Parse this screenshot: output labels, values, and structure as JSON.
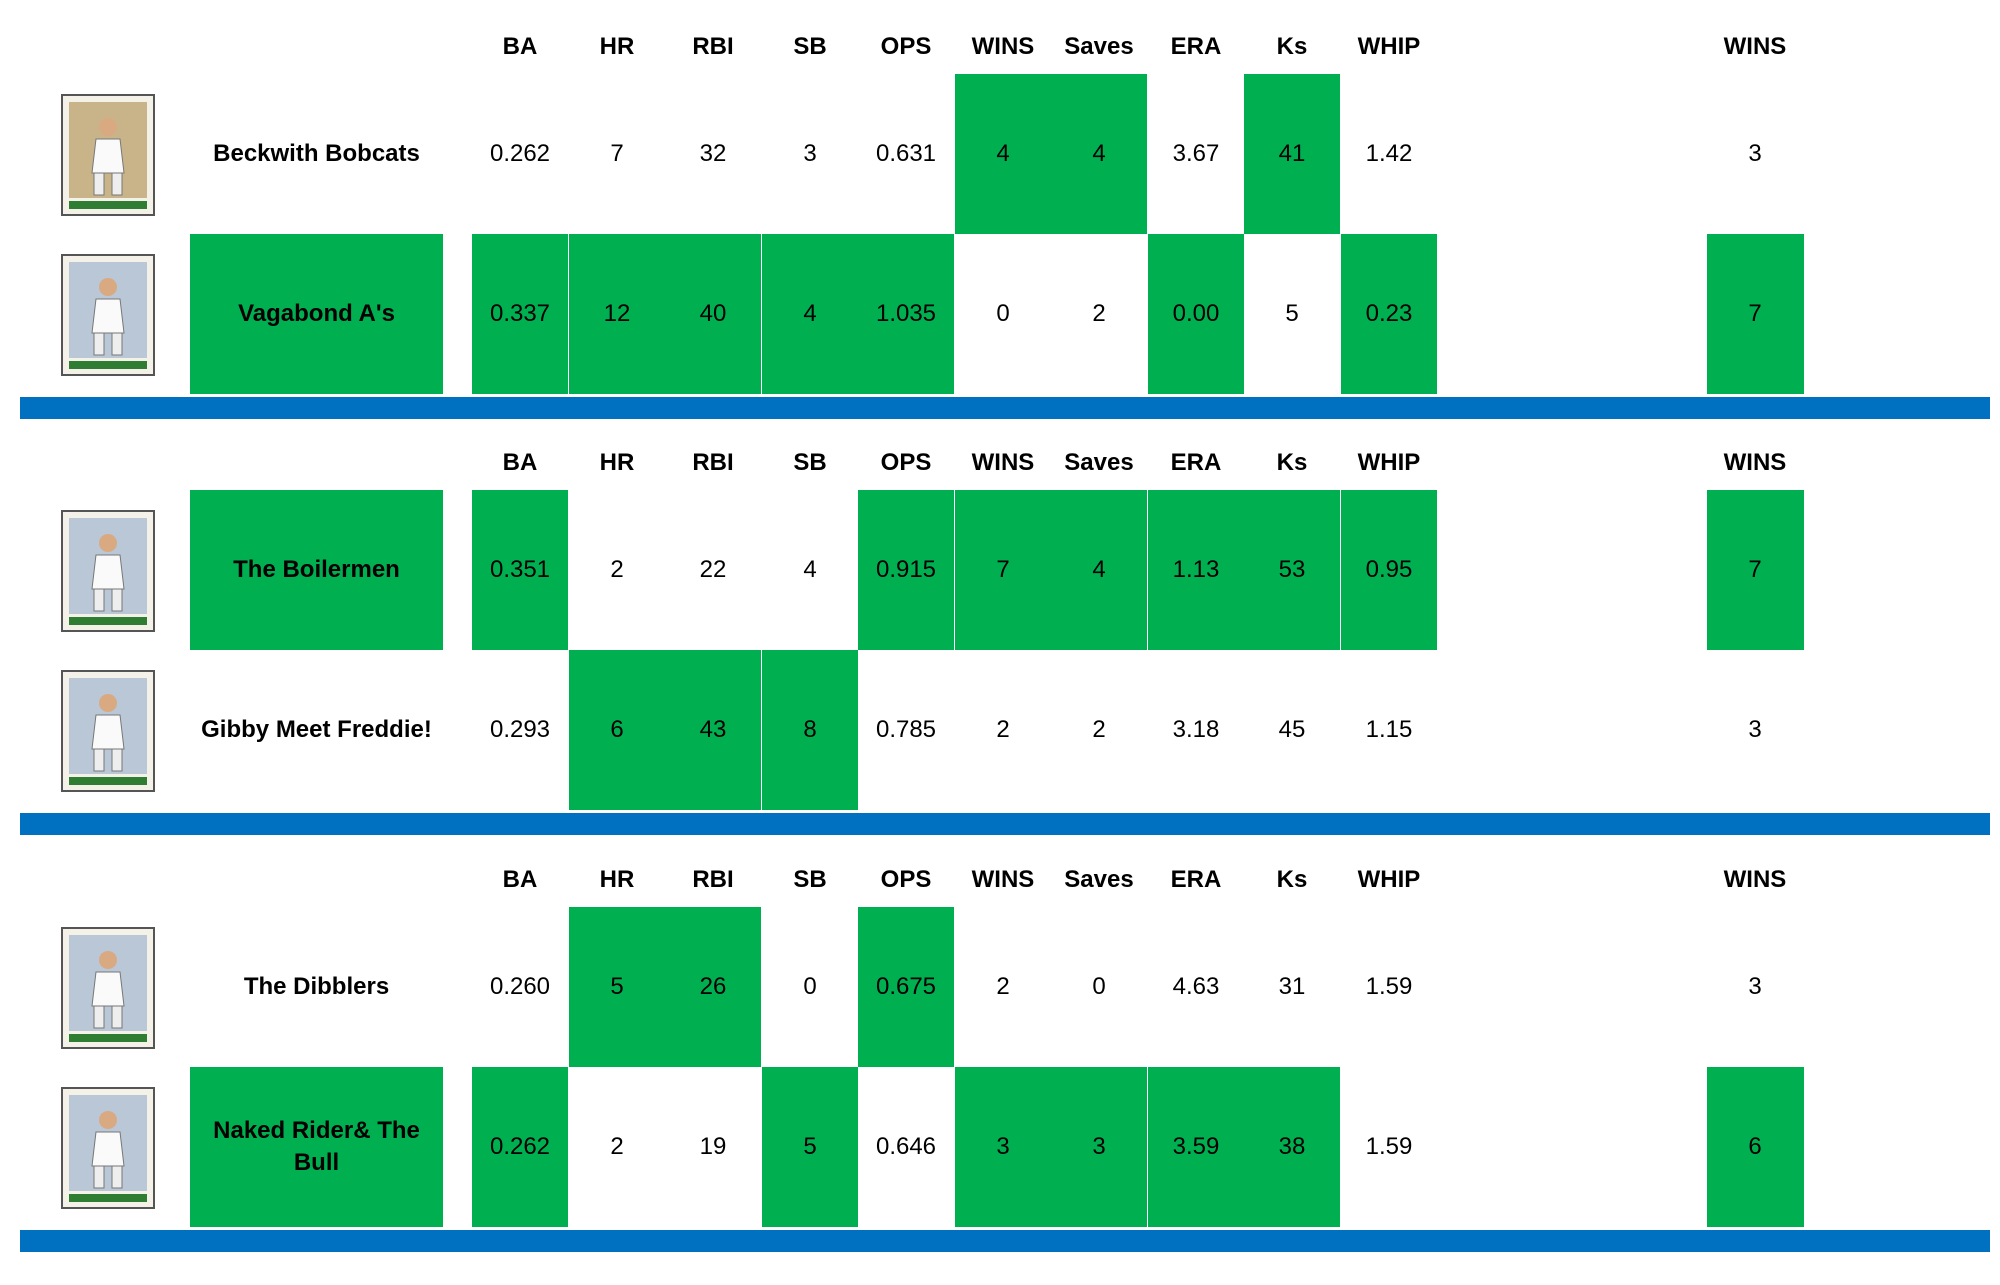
{
  "colors": {
    "winner_fill": "#00b050",
    "divider": "#0070c0"
  },
  "headers": [
    "BA",
    "HR",
    "RBI",
    "SB",
    "OPS",
    "WINS",
    "Saves",
    "ERA",
    "Ks",
    "WHIP"
  ],
  "total_header": "WINS",
  "matchups": [
    {
      "teams": [
        {
          "name": "Beckwith Bobcats",
          "card_icon": "pitcher-card-icon",
          "name_win": false,
          "stats": [
            "0.262",
            "7",
            "32",
            "3",
            "0.631",
            "4",
            "4",
            "3.67",
            "41",
            "1.42"
          ],
          "stat_win": [
            false,
            false,
            false,
            false,
            false,
            true,
            true,
            false,
            true,
            false
          ],
          "total": "3",
          "total_win": false
        },
        {
          "name": "Vagabond A's",
          "card_icon": "batter-card-icon",
          "name_win": true,
          "stats": [
            "0.337",
            "12",
            "40",
            "4",
            "1.035",
            "0",
            "2",
            "0.00",
            "5",
            "0.23"
          ],
          "stat_win": [
            true,
            true,
            true,
            true,
            true,
            false,
            false,
            true,
            false,
            true
          ],
          "total": "7",
          "total_win": true
        }
      ]
    },
    {
      "teams": [
        {
          "name": "The Boilermen",
          "card_icon": "player-card-icon",
          "name_win": true,
          "stats": [
            "0.351",
            "2",
            "22",
            "4",
            "0.915",
            "7",
            "4",
            "1.13",
            "53",
            "0.95"
          ],
          "stat_win": [
            true,
            false,
            false,
            false,
            true,
            true,
            true,
            true,
            true,
            true
          ],
          "total": "7",
          "total_win": true
        },
        {
          "name": "Gibby Meet Freddie!",
          "card_icon": "player-card-icon",
          "name_win": false,
          "stats": [
            "0.293",
            "6",
            "43",
            "8",
            "0.785",
            "2",
            "2",
            "3.18",
            "45",
            "1.15"
          ],
          "stat_win": [
            false,
            true,
            true,
            true,
            false,
            false,
            false,
            false,
            false,
            false
          ],
          "total": "3",
          "total_win": false
        }
      ]
    },
    {
      "teams": [
        {
          "name": "The Dibblers",
          "card_icon": "player-card-icon",
          "name_win": false,
          "stats": [
            "0.260",
            "5",
            "26",
            "0",
            "0.675",
            "2",
            "0",
            "4.63",
            "31",
            "1.59"
          ],
          "stat_win": [
            false,
            true,
            true,
            false,
            true,
            false,
            false,
            false,
            false,
            false
          ],
          "total": "3",
          "total_win": false
        },
        {
          "name": "Naked Rider& The Bull",
          "card_icon": "player-card-icon",
          "name_win": true,
          "stats": [
            "0.262",
            "2",
            "19",
            "5",
            "0.646",
            "3",
            "3",
            "3.59",
            "38",
            "1.59"
          ],
          "stat_win": [
            true,
            false,
            false,
            true,
            false,
            true,
            true,
            true,
            true,
            false
          ],
          "total": "6",
          "total_win": true
        }
      ]
    }
  ]
}
